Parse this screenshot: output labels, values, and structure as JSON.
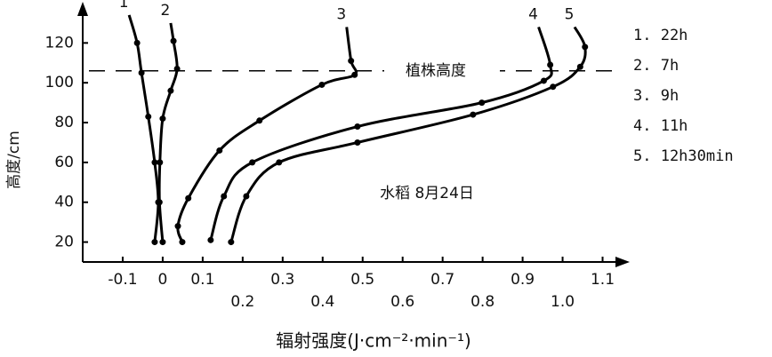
{
  "chart_data": {
    "type": "line",
    "x_label": "辐射强度(J·cm⁻²·min⁻¹)",
    "y_label": "高度/cm",
    "annotation": "水稻  8月24日",
    "reference_line": {
      "value": 106,
      "label": "植株高度"
    },
    "xlim": [
      -0.2,
      1.15
    ],
    "ylim": [
      10,
      138
    ],
    "xticks": [
      -0.1,
      0,
      0.1,
      0.2,
      0.3,
      0.4,
      0.5,
      0.6,
      0.7,
      0.8,
      0.9,
      {
        "value": 1.0,
        "label": "1.0"
      },
      1.1
    ],
    "yticks": [
      20,
      40,
      60,
      80,
      100,
      120
    ],
    "series": [
      {
        "name": "1. 22h",
        "label": "1",
        "color": "#000",
        "x": [
          -0.084,
          -0.064,
          -0.053,
          -0.036,
          -0.02,
          -0.011,
          -0.02
        ],
        "values": [
          134,
          120,
          105,
          83,
          60,
          40,
          20
        ]
      },
      {
        "name": "2. 7h",
        "label": "2",
        "color": "#000",
        "x": [
          0.02,
          0.027,
          0.036,
          0.02,
          0.0,
          -0.007,
          -0.008,
          0.0
        ],
        "values": [
          130,
          121,
          107,
          96,
          82,
          60,
          40,
          20
        ]
      },
      {
        "name": "3. 9h",
        "label": "3",
        "color": "#000",
        "x": [
          0.46,
          0.471,
          0.48,
          0.398,
          0.242,
          0.142,
          0.064,
          0.038,
          0.049
        ],
        "values": [
          128,
          111,
          104,
          99,
          81,
          66,
          42,
          28,
          20
        ]
      },
      {
        "name": "4. 11h",
        "label": "4",
        "color": "#000",
        "x": [
          0.94,
          0.969,
          0.953,
          0.798,
          0.487,
          0.224,
          0.153,
          0.12
        ],
        "values": [
          128,
          109,
          101,
          90,
          78,
          60,
          43,
          21
        ]
      },
      {
        "name": "5. 12h30min",
        "label": "5",
        "color": "#000",
        "x": [
          1.03,
          1.056,
          1.044,
          0.976,
          0.776,
          0.487,
          0.291,
          0.209,
          0.171
        ],
        "values": [
          128,
          118,
          108,
          98,
          84,
          70,
          60,
          43,
          20
        ]
      }
    ]
  }
}
